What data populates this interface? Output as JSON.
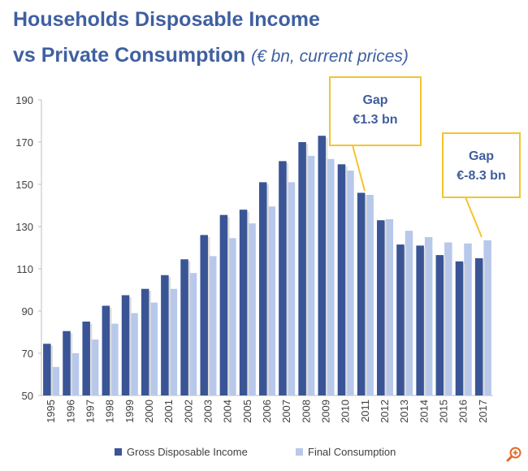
{
  "header": {
    "title_line1": "Households Disposable Income",
    "title_line2_main": "vs Private Consumption",
    "title_line2_sub": "(€ bn, current prices)"
  },
  "colors": {
    "title": "#3f60a0",
    "series_income": "#3a5596",
    "series_consumption": "#b7c8ea",
    "callout_border": "#f4c431",
    "callout_text": "#3f5e9e"
  },
  "icons": {
    "zoom": "zoom-in-icon"
  },
  "chart_data": {
    "type": "bar",
    "categories": [
      "1995",
      "1996",
      "1997",
      "1998",
      "1999",
      "2000",
      "2001",
      "2002",
      "2003",
      "2004",
      "2005",
      "2006",
      "2007",
      "2008",
      "2009",
      "2010",
      "2011",
      "2012",
      "2013",
      "2014",
      "2015",
      "2016",
      "2017"
    ],
    "series": [
      {
        "name": "Gross Disposable Income",
        "values": [
          74.5,
          80.5,
          85,
          92.5,
          97.5,
          100.5,
          107,
          114.5,
          126,
          135.5,
          138,
          151,
          161,
          170,
          173,
          159.5,
          146,
          133,
          121.5,
          121,
          116.5,
          113.5,
          115
        ]
      },
      {
        "name": "Final Consumption",
        "values": [
          63.5,
          70,
          76.5,
          84,
          89,
          94,
          100.5,
          108,
          116,
          124.5,
          131.5,
          139.5,
          151,
          163.5,
          162,
          156.5,
          145,
          133.5,
          128,
          125,
          122.5,
          122,
          123.5
        ]
      }
    ],
    "title": "",
    "xlabel": "",
    "ylabel": "",
    "ylim": [
      50,
      190
    ],
    "yticks": [
      50,
      70,
      90,
      110,
      130,
      150,
      170,
      190
    ],
    "grid": false,
    "legend_position": "bottom",
    "annotations": [
      {
        "line1": "Gap",
        "line2": "€1.3 bn",
        "year": "2011"
      },
      {
        "line1": "Gap",
        "line2": "€-8.3 bn",
        "year": "2017"
      }
    ]
  }
}
